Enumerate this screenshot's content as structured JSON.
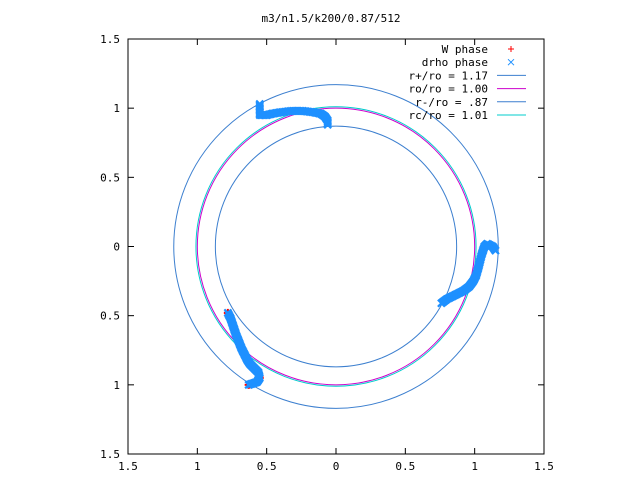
{
  "chart_data": {
    "type": "scatter",
    "title": "m3/n1.5/k200/0.87/512",
    "xlabel": "",
    "ylabel": "",
    "xlim": [
      -1.5,
      1.5
    ],
    "ylim": [
      -1.5,
      1.5
    ],
    "x_ticks": [
      -1.5,
      -1,
      -0.5,
      0,
      0.5,
      1,
      1.5
    ],
    "y_ticks": [
      -1.5,
      -1,
      -0.5,
      0,
      0.5,
      1,
      1.5
    ],
    "x_tick_labels": [
      "1.5",
      "1",
      "0.5",
      "0",
      "0.5",
      "1",
      "1.5"
    ],
    "y_tick_labels": [
      "1.5",
      "1",
      "0.5",
      "0",
      "0.5",
      "1",
      "1.5"
    ],
    "grid": false,
    "legend_position": "top-right",
    "colors": {
      "w_phase": "#ff0000",
      "drho_phase": "#1e90ff",
      "r_plus": "#3c7fcf",
      "ro": "#cc00cc",
      "r_minus": "#3c7fcf",
      "rc": "#00cccc"
    },
    "series": [
      {
        "name": "W phase",
        "marker": "+",
        "x": [
          -0.78,
          -0.76,
          -0.74,
          -0.72,
          -0.7,
          -0.68,
          -0.66,
          -0.64,
          -0.62,
          -0.6,
          -0.58,
          -0.56,
          -0.55,
          -0.57,
          -0.6,
          -0.63
        ],
        "y": [
          -0.48,
          -0.52,
          -0.58,
          -0.64,
          -0.69,
          -0.74,
          -0.78,
          -0.82,
          -0.85,
          -0.87,
          -0.89,
          -0.91,
          -0.95,
          -0.98,
          -0.99,
          -1.0
        ]
      },
      {
        "name": "drho phase",
        "marker": "x",
        "x": [
          -0.55,
          -0.55,
          -0.55,
          -0.53,
          -0.5,
          -0.46,
          -0.4,
          -0.32,
          -0.24,
          -0.16,
          -0.11,
          -0.08,
          -0.06,
          -0.06,
          -0.78,
          -0.76,
          -0.74,
          -0.72,
          -0.7,
          -0.68,
          -0.66,
          -0.64,
          -0.62,
          -0.6,
          -0.58,
          -0.56,
          -0.55,
          -0.57,
          -0.6,
          -0.63,
          0.76,
          0.8,
          0.84,
          0.88,
          0.92,
          0.96,
          0.99,
          1.01,
          1.03,
          1.05,
          1.07,
          1.09,
          1.11,
          1.13,
          1.15
        ],
        "y": [
          1.03,
          0.99,
          0.95,
          0.95,
          0.95,
          0.96,
          0.97,
          0.98,
          0.98,
          0.97,
          0.96,
          0.94,
          0.91,
          0.88,
          -0.48,
          -0.52,
          -0.58,
          -0.64,
          -0.69,
          -0.74,
          -0.78,
          -0.82,
          -0.85,
          -0.87,
          -0.89,
          -0.91,
          -0.95,
          -0.98,
          -0.99,
          -1.0,
          -0.41,
          -0.38,
          -0.36,
          -0.34,
          -0.32,
          -0.29,
          -0.25,
          -0.21,
          -0.14,
          -0.06,
          0.0,
          0.02,
          0.01,
          0.0,
          -0.03
        ]
      }
    ],
    "curves": [
      {
        "name": "r+/ro = 1.17",
        "type": "circle",
        "r": 1.17
      },
      {
        "name": "ro/ro = 1.00",
        "type": "circle",
        "r": 1.0
      },
      {
        "name": "r-/ro = .87",
        "type": "circle",
        "r": 0.87
      },
      {
        "name": "rc/ro = 1.01",
        "type": "circle",
        "r": 1.01
      }
    ]
  }
}
